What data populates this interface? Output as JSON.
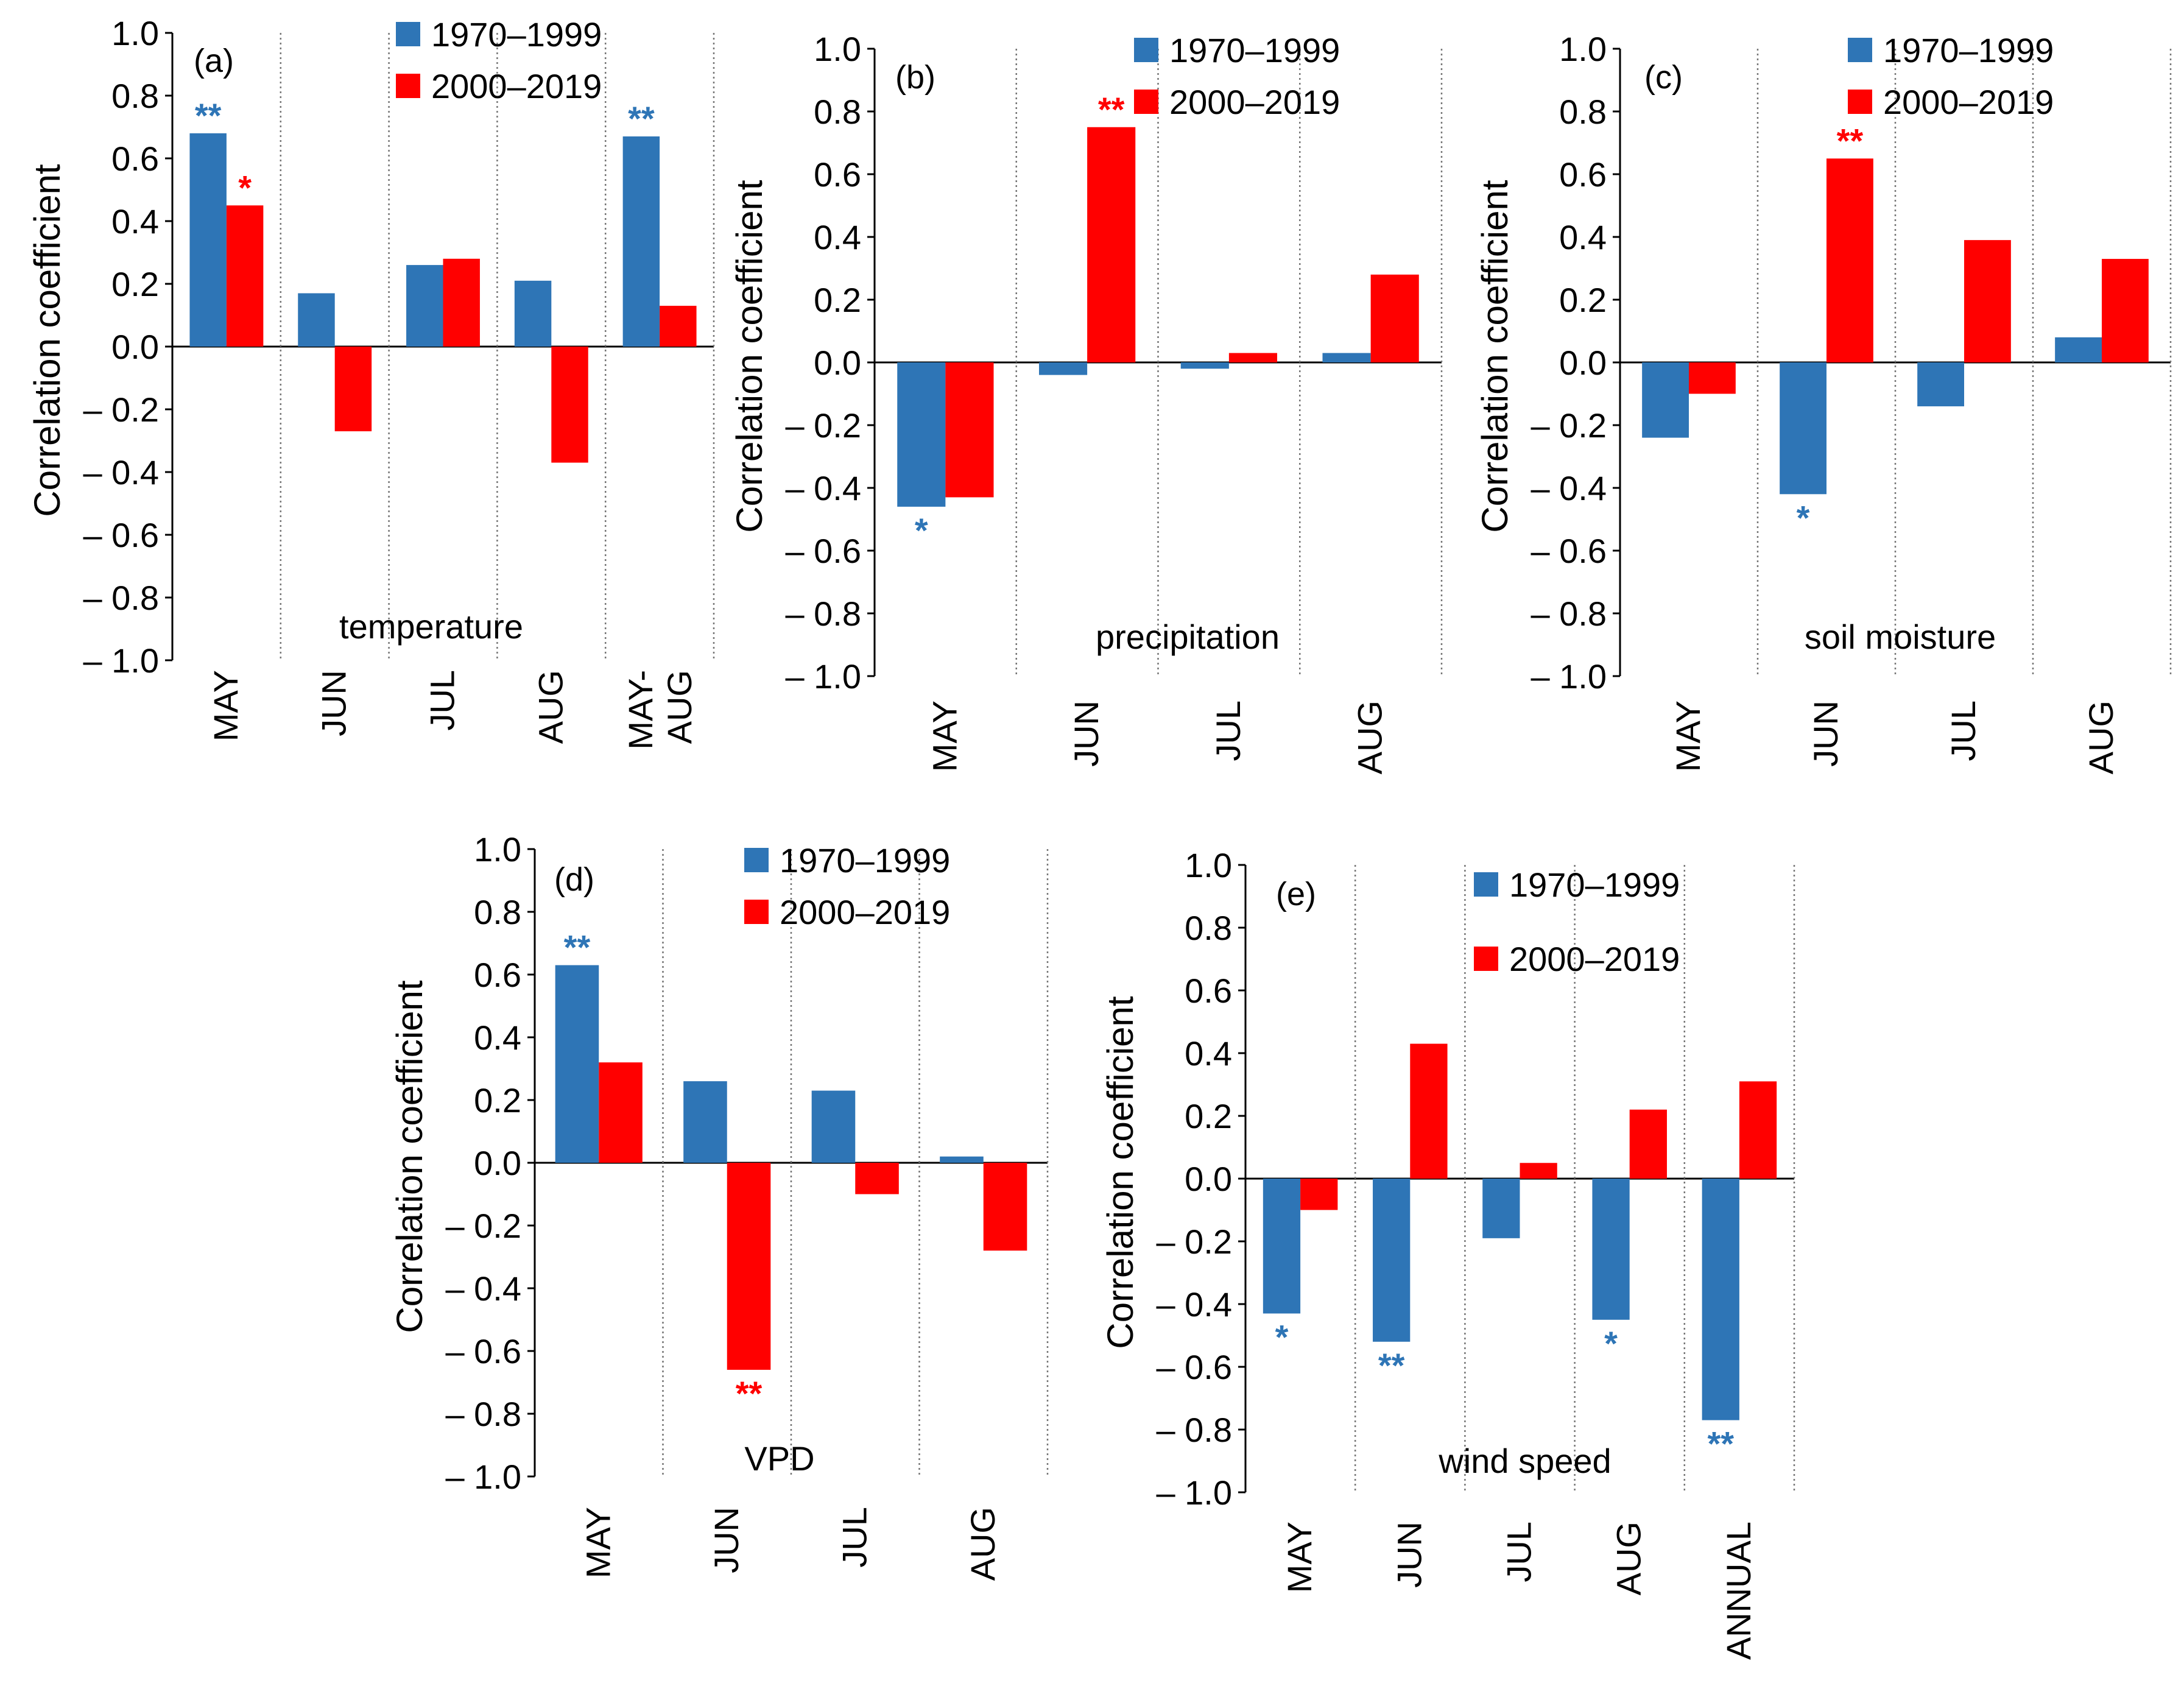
{
  "legend": {
    "series1": "1970–1999",
    "series2": "2000–2019"
  },
  "colors": {
    "series1": "#2E75B6",
    "series2": "#FF0000"
  },
  "chart_data": [
    {
      "type": "bar",
      "panel": "(a)",
      "variable": "temperature",
      "ylabel": "Correlation coefficient",
      "ylim": [
        -1.0,
        1.0
      ],
      "yticks": [
        "1.0",
        "0.8",
        "0.6",
        "0.4",
        "0.2",
        "0.0",
        "– 0.2",
        "– 0.4",
        "– 0.6",
        "– 0.8",
        "– 1.0"
      ],
      "categories": [
        "MAY",
        "JUN",
        "JUL",
        "AUG",
        "MAY-AUG"
      ],
      "series": [
        {
          "name": "1970–1999",
          "values": [
            0.68,
            0.17,
            0.26,
            0.21,
            0.67
          ],
          "significance": [
            "**",
            "",
            "",
            "",
            "**"
          ]
        },
        {
          "name": "2000–2019",
          "values": [
            0.45,
            -0.27,
            0.28,
            -0.37,
            0.13
          ],
          "significance": [
            "*",
            "",
            "",
            "",
            ""
          ]
        }
      ]
    },
    {
      "type": "bar",
      "panel": "(b)",
      "variable": "precipitation",
      "ylabel": "Correlation coefficient",
      "ylim": [
        -1.0,
        1.0
      ],
      "yticks": [
        "1.0",
        "0.8",
        "0.6",
        "0.4",
        "0.2",
        "0.0",
        "– 0.2",
        "– 0.4",
        "– 0.6",
        "– 0.8",
        "– 1.0"
      ],
      "categories": [
        "MAY",
        "JUN",
        "JUL",
        "AUG"
      ],
      "series": [
        {
          "name": "1970–1999",
          "values": [
            -0.46,
            -0.04,
            -0.02,
            0.03
          ],
          "significance": [
            "*",
            "",
            "",
            ""
          ]
        },
        {
          "name": "2000–2019",
          "values": [
            -0.43,
            0.75,
            0.03,
            0.28
          ],
          "significance": [
            "",
            "**",
            "",
            ""
          ]
        }
      ]
    },
    {
      "type": "bar",
      "panel": "(c)",
      "variable": "soil moisture",
      "ylabel": "Correlation coefficient",
      "ylim": [
        -1.0,
        1.0
      ],
      "yticks": [
        "1.0",
        "0.8",
        "0.6",
        "0.4",
        "0.2",
        "0.0",
        "– 0.2",
        "– 0.4",
        "– 0.6",
        "– 0.8",
        "– 1.0"
      ],
      "categories": [
        "MAY",
        "JUN",
        "JUL",
        "AUG"
      ],
      "series": [
        {
          "name": "1970–1999",
          "values": [
            -0.24,
            -0.42,
            -0.14,
            0.08
          ],
          "significance": [
            "",
            "*",
            "",
            ""
          ]
        },
        {
          "name": "2000–2019",
          "values": [
            -0.1,
            0.65,
            0.39,
            0.33
          ],
          "significance": [
            "",
            "**",
            "",
            ""
          ]
        }
      ]
    },
    {
      "type": "bar",
      "panel": "(d)",
      "variable": "VPD",
      "ylabel": "Correlation coefficient",
      "ylim": [
        -1.0,
        1.0
      ],
      "yticks": [
        "1.0",
        "0.8",
        "0.6",
        "0.4",
        "0.2",
        "0.0",
        "– 0.2",
        "– 0.4",
        "– 0.6",
        "– 0.8",
        "– 1.0"
      ],
      "categories": [
        "MAY",
        "JUN",
        "JUL",
        "AUG"
      ],
      "series": [
        {
          "name": "1970–1999",
          "values": [
            0.63,
            0.26,
            0.23,
            0.02
          ],
          "significance": [
            "**",
            "",
            "",
            ""
          ]
        },
        {
          "name": "2000–2019",
          "values": [
            0.32,
            -0.66,
            -0.1,
            -0.28
          ],
          "significance": [
            "",
            "**",
            "",
            ""
          ]
        }
      ]
    },
    {
      "type": "bar",
      "panel": "(e)",
      "variable": "wind speed",
      "ylabel": "Correlation coefficient",
      "ylim": [
        -1.0,
        1.0
      ],
      "yticks": [
        "1.0",
        "0.8",
        "0.6",
        "0.4",
        "0.2",
        "0.0",
        "– 0.2",
        "– 0.4",
        "– 0.6",
        "– 0.8",
        "– 1.0"
      ],
      "categories": [
        "MAY",
        "JUN",
        "JUL",
        "AUG",
        "ANNUAL"
      ],
      "series": [
        {
          "name": "1970–1999",
          "values": [
            -0.43,
            -0.52,
            -0.19,
            -0.45,
            -0.77
          ],
          "significance": [
            "*",
            "**",
            "",
            "*",
            "**"
          ]
        },
        {
          "name": "2000–2019",
          "values": [
            -0.1,
            0.43,
            0.05,
            0.22,
            0.31
          ],
          "significance": [
            "",
            "",
            "",
            "",
            ""
          ]
        }
      ]
    }
  ]
}
